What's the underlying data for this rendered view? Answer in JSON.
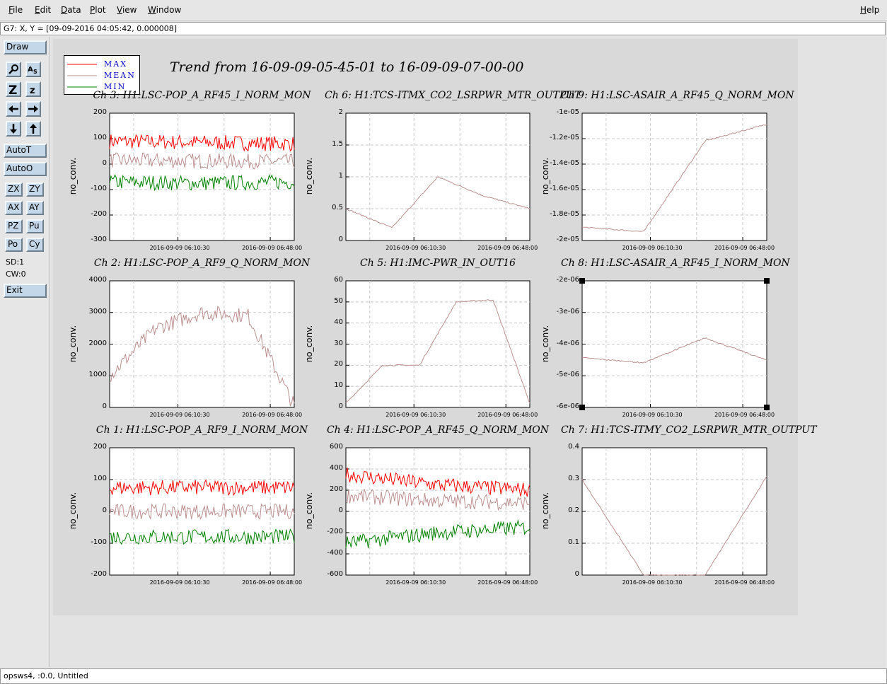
{
  "menubar": {
    "items": [
      "File",
      "Edit",
      "Data",
      "Plot",
      "View",
      "Window"
    ],
    "help": "Help"
  },
  "coord_readout": "G7: X, Y = [09-09-2016 04:05:42, 0.000008]",
  "toolpanel": {
    "draw": "Draw",
    "icons": [
      "zoom-icon",
      "text-annotate-icon",
      "zoom-in-icon",
      "zoom-out-icon",
      "left-arrow-icon",
      "right-arrow-icon",
      "down-arrow-icon",
      "up-arrow-icon"
    ],
    "autot": "AutoT",
    "autoo": "AutoO",
    "grid_buttons": [
      "ZX",
      "ZY",
      "AX",
      "AY",
      "PZ",
      "Pu",
      "Po",
      "Cy"
    ],
    "sd": "SD:1",
    "cw": "CW:0",
    "exit": "Exit"
  },
  "legend": [
    {
      "label": "MAX",
      "color": "#ff0000"
    },
    {
      "label": "MEAN",
      "color": "#bc8f8f"
    },
    {
      "label": "MIN",
      "color": "#008000"
    }
  ],
  "title": "Trend from 16-09-09-05-45-01 to 16-09-09-07-00-00",
  "status": "opsws4, :0.0, Untitled",
  "chart_data": [
    {
      "type": "line",
      "title": "Ch 3: H1:LSC-POP_A_RF45_I_NORM_MON",
      "ylabel": "no_conv.",
      "ylim": [
        -300,
        200
      ],
      "yticks": [
        "200",
        "100",
        "0",
        "-100",
        "-200",
        "-300"
      ],
      "xticks": [
        "2016-09-09 06:10:30",
        "2016-09-09 06:48:00"
      ],
      "series": [
        {
          "name": "MAX",
          "values": [
            90,
            85,
            80
          ]
        },
        {
          "name": "MEAN",
          "values": [
            15,
            12,
            10
          ]
        },
        {
          "name": "MIN",
          "values": [
            -70,
            -75,
            -70
          ]
        }
      ]
    },
    {
      "type": "line",
      "title": "Ch 6: H1:TCS-ITMX_CO2_LSRPWR_MTR_OUTPUT",
      "ylabel": "no_conv.",
      "ylim": [
        0,
        2
      ],
      "yticks": [
        "2",
        "1.5",
        "1",
        "0.5",
        "0"
      ],
      "xticks": [
        "2016-09-09 06:10:30",
        "2016-09-09 06:48:00"
      ],
      "series": [
        {
          "name": "MEAN",
          "values": [
            0.5,
            0.2,
            1.0,
            0.7,
            0.5
          ]
        }
      ]
    },
    {
      "type": "line",
      "title": "Ch 9: H1:LSC-ASAIR_A_RF45_Q_NORM_MON",
      "ylabel": "no_conv.",
      "ylim": [
        -2e-05,
        -8.5e-06
      ],
      "yticks": [
        "-1e-05",
        "-1.2e-05",
        "-1.4e-05",
        "-1.6e-05",
        "-1.8e-05",
        "-2e-05"
      ],
      "xticks": [
        "2016-09-09 06:10:30",
        "2016-09-09 06:48:00"
      ],
      "series": [
        {
          "name": "MEAN",
          "values": [
            -1.88e-05,
            -1.92e-05,
            -1.1e-05,
            -9.5e-06
          ]
        }
      ]
    },
    {
      "type": "line",
      "title": "Ch 2: H1:LSC-POP_A_RF9_Q_NORM_MON",
      "ylabel": "no_conv.",
      "ylim": [
        0,
        4000
      ],
      "yticks": [
        "4000",
        "3000",
        "2000",
        "1000",
        "0"
      ],
      "xticks": [
        "2016-09-09 06:10:30",
        "2016-09-09 06:48:00"
      ],
      "series": [
        {
          "name": "MEAN",
          "values": [
            1000,
            2500,
            3000,
            2900,
            50
          ]
        }
      ]
    },
    {
      "type": "line",
      "title": "Ch 5: H1:IMC-PWR_IN_OUT16",
      "ylabel": "no_conv.",
      "ylim": [
        0,
        60
      ],
      "yticks": [
        "60",
        "50",
        "40",
        "30",
        "20",
        "10",
        "0"
      ],
      "xticks": [
        "2016-09-09 06:10:30",
        "2016-09-09 06:48:00"
      ],
      "series": [
        {
          "name": "MEAN",
          "values": [
            2,
            20,
            20,
            50,
            51,
            2
          ]
        }
      ]
    },
    {
      "type": "line",
      "title": "Ch 8: H1:LSC-ASAIR_A_RF45_I_NORM_MON",
      "ylabel": "no_conv.",
      "ylim": [
        -6.2e-06,
        -1.1e-06
      ],
      "yticks": [
        "-2e-06",
        "-3e-06",
        "-4e-06",
        "-5e-06",
        "-6e-06"
      ],
      "xticks": [
        "2016-09-09 06:10:30",
        "2016-09-09 06:48:00"
      ],
      "series": [
        {
          "name": "MEAN",
          "values": [
            -4.2e-06,
            -4.4e-06,
            -3.4e-06,
            -4.3e-06
          ]
        }
      ]
    },
    {
      "type": "line",
      "title": "Ch 1: H1:LSC-POP_A_RF9_I_NORM_MON",
      "ylabel": "no_conv.",
      "ylim": [
        -200,
        200
      ],
      "yticks": [
        "200",
        "100",
        "0",
        "-100",
        "-200"
      ],
      "xticks": [
        "2016-09-09 06:10:30",
        "2016-09-09 06:48:00"
      ],
      "series": [
        {
          "name": "MAX",
          "values": [
            75,
            75,
            75
          ]
        },
        {
          "name": "MEAN",
          "values": [
            0,
            0,
            0
          ]
        },
        {
          "name": "MIN",
          "values": [
            -80,
            -80,
            -80
          ]
        }
      ]
    },
    {
      "type": "line",
      "title": "Ch 4: H1:LSC-POP_A_RF45_Q_NORM_MON",
      "ylabel": "no_conv.",
      "ylim": [
        -600,
        600
      ],
      "yticks": [
        "600",
        "400",
        "200",
        "0",
        "-200",
        "-400",
        "-600"
      ],
      "xticks": [
        "2016-09-09 06:10:30",
        "2016-09-09 06:48:00"
      ],
      "series": [
        {
          "name": "MAX",
          "values": [
            350,
            250,
            200
          ]
        },
        {
          "name": "MEAN",
          "values": [
            150,
            100,
            80
          ]
        },
        {
          "name": "MIN",
          "values": [
            -300,
            -200,
            -150
          ]
        }
      ]
    },
    {
      "type": "line",
      "title": "Ch 7: H1:TCS-ITMY_CO2_LSRPWR_MTR_OUTPUT",
      "ylabel": "no_conv.",
      "ylim": [
        0,
        0.4
      ],
      "yticks": [
        "0.4",
        "0.3",
        "0.2",
        "0.1",
        "0"
      ],
      "xticks": [
        "2016-09-09 06:10:30",
        "2016-09-09 06:48:00"
      ],
      "series": [
        {
          "name": "MEAN",
          "values": [
            0.3,
            0.0,
            0.0,
            0.31
          ]
        }
      ]
    }
  ]
}
